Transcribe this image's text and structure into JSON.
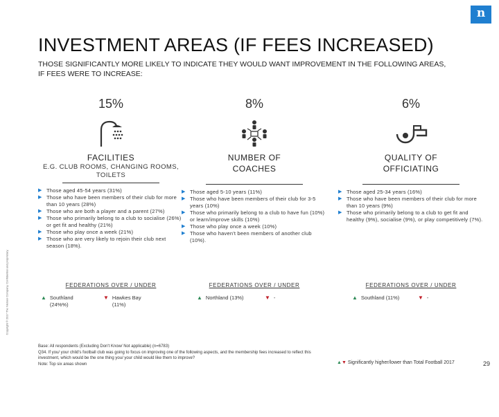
{
  "logo": {
    "text": "n"
  },
  "sidebar_note": "Copyright © 2017 The Nielsen Company. Confidential and proprietary.",
  "title": "INVESTMENT AREAS (IF FEES INCREASED)",
  "subtitle": "THOSE SIGNIFICANTLY MORE LIKELY TO INDICATE THEY WOULD WANT IMPROVEMENT IN THE FOLLOWING AREAS, IF FEES WERE TO INCREASE:",
  "columns": [
    {
      "percent": "15%",
      "icon": "shower-icon",
      "category": "FACILITIES",
      "subcategory": "E.G. CLUB ROOMS, CHANGING ROOMS, TOILETS",
      "bullets": [
        "Those aged 45-54 years (31%)",
        "Those who have been members of their club for more than 10 years (28%)",
        "Those who are both a player and a parent (27%)",
        "Those who primarily belong to a club to socialise (26%) or get fit and healthy (21%)",
        "Those who play once a week (21%)",
        "Those who are very likely to rejoin their club next season (18%)."
      ],
      "fed_heading": "FEDERATIONS OVER / UNDER",
      "fed_up": "Southland (24%%)",
      "fed_down": "Hawkes Bay (11%)"
    },
    {
      "percent": "8%",
      "icon": "coach-icon",
      "category": "NUMBER OF COACHES",
      "subcategory": "",
      "bullets": [
        "Those aged 5-10 years (11%)",
        "Those who have been members of their club for 3-5 years (10%)",
        "Those who primarily belong to a club to have fun (10%) or learn/improve skills (10%)",
        "Those who play once a week (10%)",
        "Those who haven't been members of another club (10%)."
      ],
      "fed_heading": "FEDERATIONS OVER / UNDER",
      "fed_up": "Northland (13%)",
      "fed_down": "-"
    },
    {
      "percent": "6%",
      "icon": "whistle-icon",
      "category": "QUALITY OF OFFICIATING",
      "subcategory": "",
      "bullets": [
        "Those aged 25-34 years (16%)",
        "Those who have been members of their club for more than 10 years (9%)",
        "Those who primarily belong to a club to get fit and healthy (9%), socialise (9%), or play competitively (7%)."
      ],
      "fed_heading": "FEDERATIONS OVER / UNDER",
      "fed_up": "Southland (11%)",
      "fed_down": "-"
    }
  ],
  "footer": {
    "line1": "Base: All respondents (Excluding Don't Know/ Not applicable) (n=6783)",
    "line2": "Q34. If you/ your child's football club was going to focus on improving one of the following aspects, and the membership fees increased to reflect this investment, which would be the one thing you/ your child would like them to improve?",
    "line3": "Note: Top six areas shown"
  },
  "legend": "Significantly higher/lower than Total Football 2017",
  "page_number": "29",
  "colors": {
    "accent": "#1f7fd0",
    "up": "#2e8b57",
    "down": "#c0202a"
  }
}
